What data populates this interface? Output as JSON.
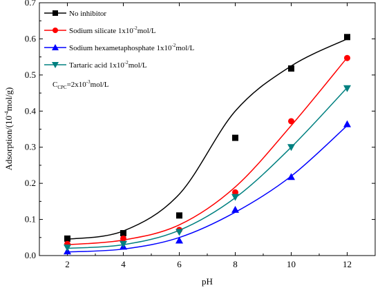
{
  "chart_data": {
    "type": "scatter",
    "xlabel": "pH",
    "ylabel_main": "Adsorption/(10",
    "ylabel_sup": "-4",
    "ylabel_end": "mol/g)",
    "xlim": [
      1,
      13
    ],
    "ylim": [
      0,
      0.7
    ],
    "xticks": [
      2,
      4,
      6,
      8,
      10,
      12
    ],
    "yticks": [
      0.0,
      0.1,
      0.2,
      0.3,
      0.4,
      0.5,
      0.6,
      0.7
    ],
    "ytick_labels": [
      "0.0",
      "0.1",
      "0.2",
      "0.3",
      "0.4",
      "0.5",
      "0.6",
      "0.7"
    ],
    "annotation": {
      "main": "C",
      "sub": "CPC",
      "text": "=2x10",
      "sup": "-3",
      "tail": "mol/L"
    },
    "series": [
      {
        "label_main": "No inhibitor",
        "label_sup": "",
        "label_tail": "",
        "marker": "square",
        "color": "#000000",
        "x": [
          2,
          4,
          6,
          8,
          10,
          12
        ],
        "y": [
          0.047,
          0.062,
          0.111,
          0.326,
          0.518,
          0.605
        ],
        "fit": [
          0.045,
          0.068,
          0.17,
          0.4,
          0.525,
          0.6
        ]
      },
      {
        "label_main": "Sodium silicate 1x10",
        "label_sup": "-2",
        "label_tail": "mol/L",
        "marker": "circle",
        "color": "#ff0000",
        "x": [
          2,
          4,
          6,
          8,
          10,
          12
        ],
        "y": [
          0.032,
          0.047,
          0.071,
          0.175,
          0.372,
          0.547
        ],
        "fit": [
          0.03,
          0.043,
          0.085,
          0.19,
          0.36,
          0.548
        ]
      },
      {
        "label_main": "Sodium hexametaphosphate 1x10",
        "label_sup": "-2",
        "label_tail": "mol/L",
        "marker": "triangle-up",
        "color": "#0000ff",
        "x": [
          2,
          4,
          6,
          8,
          10,
          12
        ],
        "y": [
          0.012,
          0.025,
          0.042,
          0.127,
          0.218,
          0.364
        ],
        "fit": [
          0.01,
          0.018,
          0.05,
          0.12,
          0.22,
          0.36
        ]
      },
      {
        "label_main": "Tartaric acid 1x10",
        "label_sup": "-2",
        "label_tail": "mol/L",
        "marker": "triangle-down",
        "color": "#008080",
        "x": [
          2,
          4,
          6,
          8,
          10,
          12
        ],
        "y": [
          0.022,
          0.032,
          0.065,
          0.162,
          0.3,
          0.463
        ],
        "fit": [
          0.02,
          0.03,
          0.07,
          0.16,
          0.3,
          0.465
        ]
      }
    ],
    "legend_position": "top-left"
  }
}
